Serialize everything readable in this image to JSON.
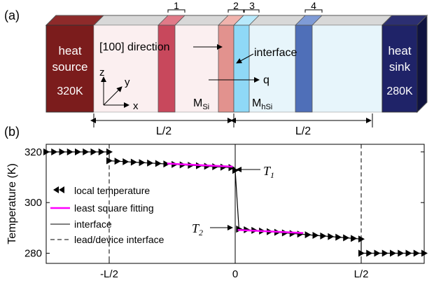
{
  "panel_a": {
    "label": "(a)",
    "source": {
      "line1": "heat",
      "line2": "source",
      "temp": "320K",
      "color": "#7b1c1c"
    },
    "sink": {
      "line1": "heat",
      "line2": "sink",
      "temp": "280K",
      "color": "#1f2368"
    },
    "left_region_color": "#fbeff0",
    "right_region_color": "#e7f5fb",
    "markers": [
      "1",
      "2",
      "3",
      "4"
    ],
    "direction_label": "[100] direction",
    "interface_label": "interface",
    "q_label": "q",
    "axes": {
      "z": "z",
      "y": "y",
      "x": "x"
    },
    "m_si": {
      "base": "M",
      "sub": "Si"
    },
    "m_hsi": {
      "base": "M",
      "sub": "hSi"
    },
    "half_length_left": "L/2",
    "half_length_right": "L/2"
  },
  "panel_b": {
    "label": "(b)",
    "t1": {
      "base": "T",
      "sub": "1"
    },
    "t2": {
      "base": "T",
      "sub": "2"
    }
  },
  "chart_data": {
    "type": "scatter",
    "ylabel": "Temperature (K)",
    "xlabel": "",
    "xlim": [
      -0.75,
      0.75
    ],
    "ylim": [
      276,
      323
    ],
    "x_tick_values": [
      -0.5,
      0,
      0.5
    ],
    "x_tick_labels": [
      "-L/2",
      "0",
      "L/2"
    ],
    "y_ticks": [
      280,
      300,
      320
    ],
    "legend_position": "left",
    "legend": [
      {
        "label": "local temperature",
        "style": "marker"
      },
      {
        "label": "least square fitting",
        "style": "magenta-line"
      },
      {
        "label": "interface",
        "style": "solid-line"
      },
      {
        "label": "lead/device interface",
        "style": "dashed-line"
      }
    ],
    "series": [
      {
        "name": "local temperature",
        "segments": [
          {
            "x_start": -0.75,
            "x_end": -0.5,
            "n": 9,
            "y_start": 320,
            "y_end": 320
          },
          {
            "x_start": -0.5,
            "x_end": -0.015,
            "n": 16,
            "y_start": 316.5,
            "y_end": 313.8
          },
          {
            "x_start": 0.015,
            "x_end": 0.5,
            "n": 17,
            "y_start": 289.5,
            "y_end": 285.6
          },
          {
            "x_start": 0.5,
            "x_end": 0.75,
            "n": 9,
            "y_start": 280,
            "y_end": 280
          }
        ],
        "interface_points": [
          {
            "x": -0.015,
            "y": 313.8
          },
          {
            "x": 0.0,
            "y": 312.7
          },
          {
            "x": 0.015,
            "y": 289.5
          }
        ]
      },
      {
        "name": "least square fitting",
        "lines": [
          {
            "x": [
              -0.27,
              -0.01
            ],
            "y": [
              315.4,
              314.2
            ]
          },
          {
            "x": [
              0.01,
              0.27
            ],
            "y": [
              289.2,
              288.0
            ]
          }
        ]
      }
    ]
  }
}
